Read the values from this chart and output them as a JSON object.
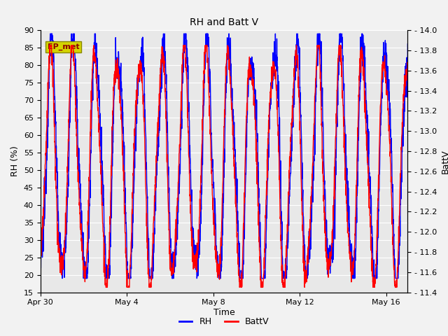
{
  "title": "RH and Batt V",
  "xlabel": "Time",
  "ylabel_left": "RH (%)",
  "ylabel_right": "BattV",
  "series": [
    "RH",
    "BattV"
  ],
  "series_colors": [
    "blue",
    "red"
  ],
  "ylim_left": [
    15,
    90
  ],
  "ylim_right": [
    11.4,
    14.0
  ],
  "yticks_left": [
    15,
    20,
    25,
    30,
    35,
    40,
    45,
    50,
    55,
    60,
    65,
    70,
    75,
    80,
    85,
    90
  ],
  "yticks_right": [
    11.4,
    11.6,
    11.8,
    12.0,
    12.2,
    12.4,
    12.6,
    12.8,
    13.0,
    13.2,
    13.4,
    13.6,
    13.8,
    14.0
  ],
  "background_color": "#f2f2f2",
  "plot_bg_color": "#e8e8e8",
  "grid_color": "#ffffff",
  "xtick_labels": [
    "Apr 30",
    "May 4",
    "May 8",
    "May 12",
    "May 16"
  ],
  "xtick_pos": [
    0,
    4,
    8,
    12,
    16
  ],
  "xlim": [
    0,
    17
  ],
  "annotation_box_facecolor": "#d4d400",
  "annotation_box_edgecolor": "#888800",
  "annotation_text_color": "#8b0000",
  "annotation_label": "EP_met",
  "line_width": 1.0,
  "title_fontsize": 10,
  "label_fontsize": 9,
  "tick_fontsize": 8
}
